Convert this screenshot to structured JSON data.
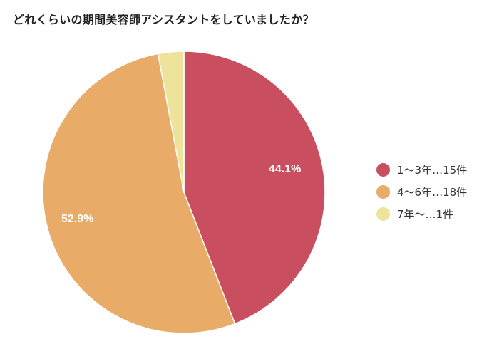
{
  "title": "どれくらいの期間美容師アシスタントをしていましたか？",
  "chart_data": {
    "type": "pie",
    "title": "どれくらいの期間美容師アシスタントをしていましたか？",
    "categories": [
      "1〜3年",
      "4〜6年",
      "7年〜"
    ],
    "values": [
      15,
      18,
      1
    ],
    "percentages": [
      44.1,
      52.9,
      2.9
    ],
    "data_labels": [
      "44.1%",
      "52.9%",
      ""
    ],
    "colors": [
      "#C94E5F",
      "#E8AB68",
      "#EDE39A"
    ],
    "legend_position": "right",
    "start_angle": "12 o'clock, clockwise"
  },
  "labels": {
    "slice0": "44.1%",
    "slice1": "52.9%"
  },
  "legend": {
    "items": [
      {
        "label": "1〜3年…15件",
        "color": "#C94E5F"
      },
      {
        "label": "4〜6年…18件",
        "color": "#E8AB68"
      },
      {
        "label": "7年〜…1件",
        "color": "#EDE39A"
      }
    ]
  }
}
